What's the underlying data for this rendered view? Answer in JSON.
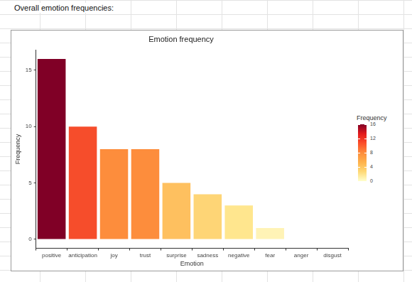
{
  "heading": "Overall emotion frequencies:",
  "chart_data": {
    "type": "bar",
    "title": "Emotion frequency",
    "x_label": "Emotion",
    "y_label": "Frequency",
    "categories": [
      "positive",
      "anticipation",
      "joy",
      "trust",
      "surprise",
      "sadness",
      "negative",
      "fear",
      "anger",
      "disgust"
    ],
    "values": [
      16,
      10,
      8,
      8,
      5,
      4,
      3,
      1,
      0,
      0
    ],
    "colors": [
      "#800026",
      "#f64d2b",
      "#fd8d3c",
      "#fd8d3c",
      "#fec05f",
      "#fed576",
      "#ffe68e",
      "#fff3b6",
      "#ffffcc",
      "#ffffcc"
    ],
    "ylim": [
      -0.8,
      16.8
    ],
    "yticks": [
      0,
      5,
      10,
      15
    ],
    "grid": false,
    "colorbar": {
      "title": "Frequency",
      "range": [
        0,
        16
      ],
      "ticks": [
        0,
        4,
        8,
        12,
        16
      ],
      "colors": [
        "#ffffcc",
        "#fed976",
        "#feb24c",
        "#fd8d3c",
        "#fc4e2a",
        "#e31a1c",
        "#800026"
      ]
    }
  }
}
